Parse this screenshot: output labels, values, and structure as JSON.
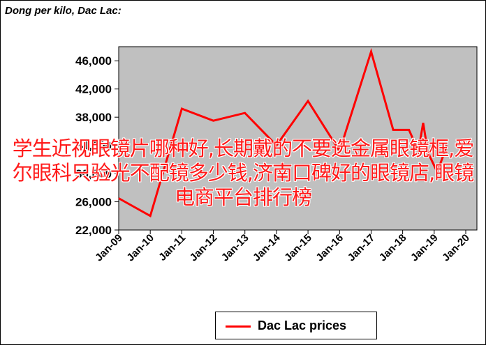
{
  "chart_data": {
    "type": "line",
    "title": "Dong per kilo, Dac Lac:",
    "x_tick_labels": [
      "Jan-09",
      "Jan-10",
      "Jan-11",
      "Jan-12",
      "Jan-13",
      "Jan-14",
      "Jan-15",
      "Jan-16",
      "Jan-17",
      "Jan-18",
      "Jan-19",
      "Jan-20"
    ],
    "y_tick_labels": [
      "22,000",
      "26,000",
      "30,000",
      "34,000",
      "38,000",
      "42,000",
      "46,000"
    ],
    "ylim": [
      22000,
      48000
    ],
    "grid": false,
    "legend_position": "bottom",
    "series": [
      {
        "name": "Dac Lac prices",
        "color": "#ff0000",
        "points": [
          {
            "x": 2009.0,
            "y": 26500
          },
          {
            "x": 2010.0,
            "y": 24000
          },
          {
            "x": 2011.0,
            "y": 39200
          },
          {
            "x": 2012.0,
            "y": 37500
          },
          {
            "x": 2013.0,
            "y": 38600
          },
          {
            "x": 2014.0,
            "y": 34000
          },
          {
            "x": 2015.0,
            "y": 40300
          },
          {
            "x": 2016.0,
            "y": 33200
          },
          {
            "x": 2017.0,
            "y": 47300
          },
          {
            "x": 2017.7,
            "y": 36200
          },
          {
            "x": 2018.2,
            "y": 36200
          },
          {
            "x": 2018.5,
            "y": 33200
          },
          {
            "x": 2018.65,
            "y": 37200
          },
          {
            "x": 2018.8,
            "y": 33000
          },
          {
            "x": 2019.1,
            "y": 30200
          },
          {
            "x": 2019.4,
            "y": 34000
          }
        ]
      }
    ]
  },
  "overlay": {
    "text": "学生近视眼镜片哪种好,长期戴的不要选金属眼镜框,爱尔眼科只验光不配镜多少钱,济南口碑好的眼镜店,眼镜电商平台排行榜",
    "color": "#ff1a1a"
  }
}
